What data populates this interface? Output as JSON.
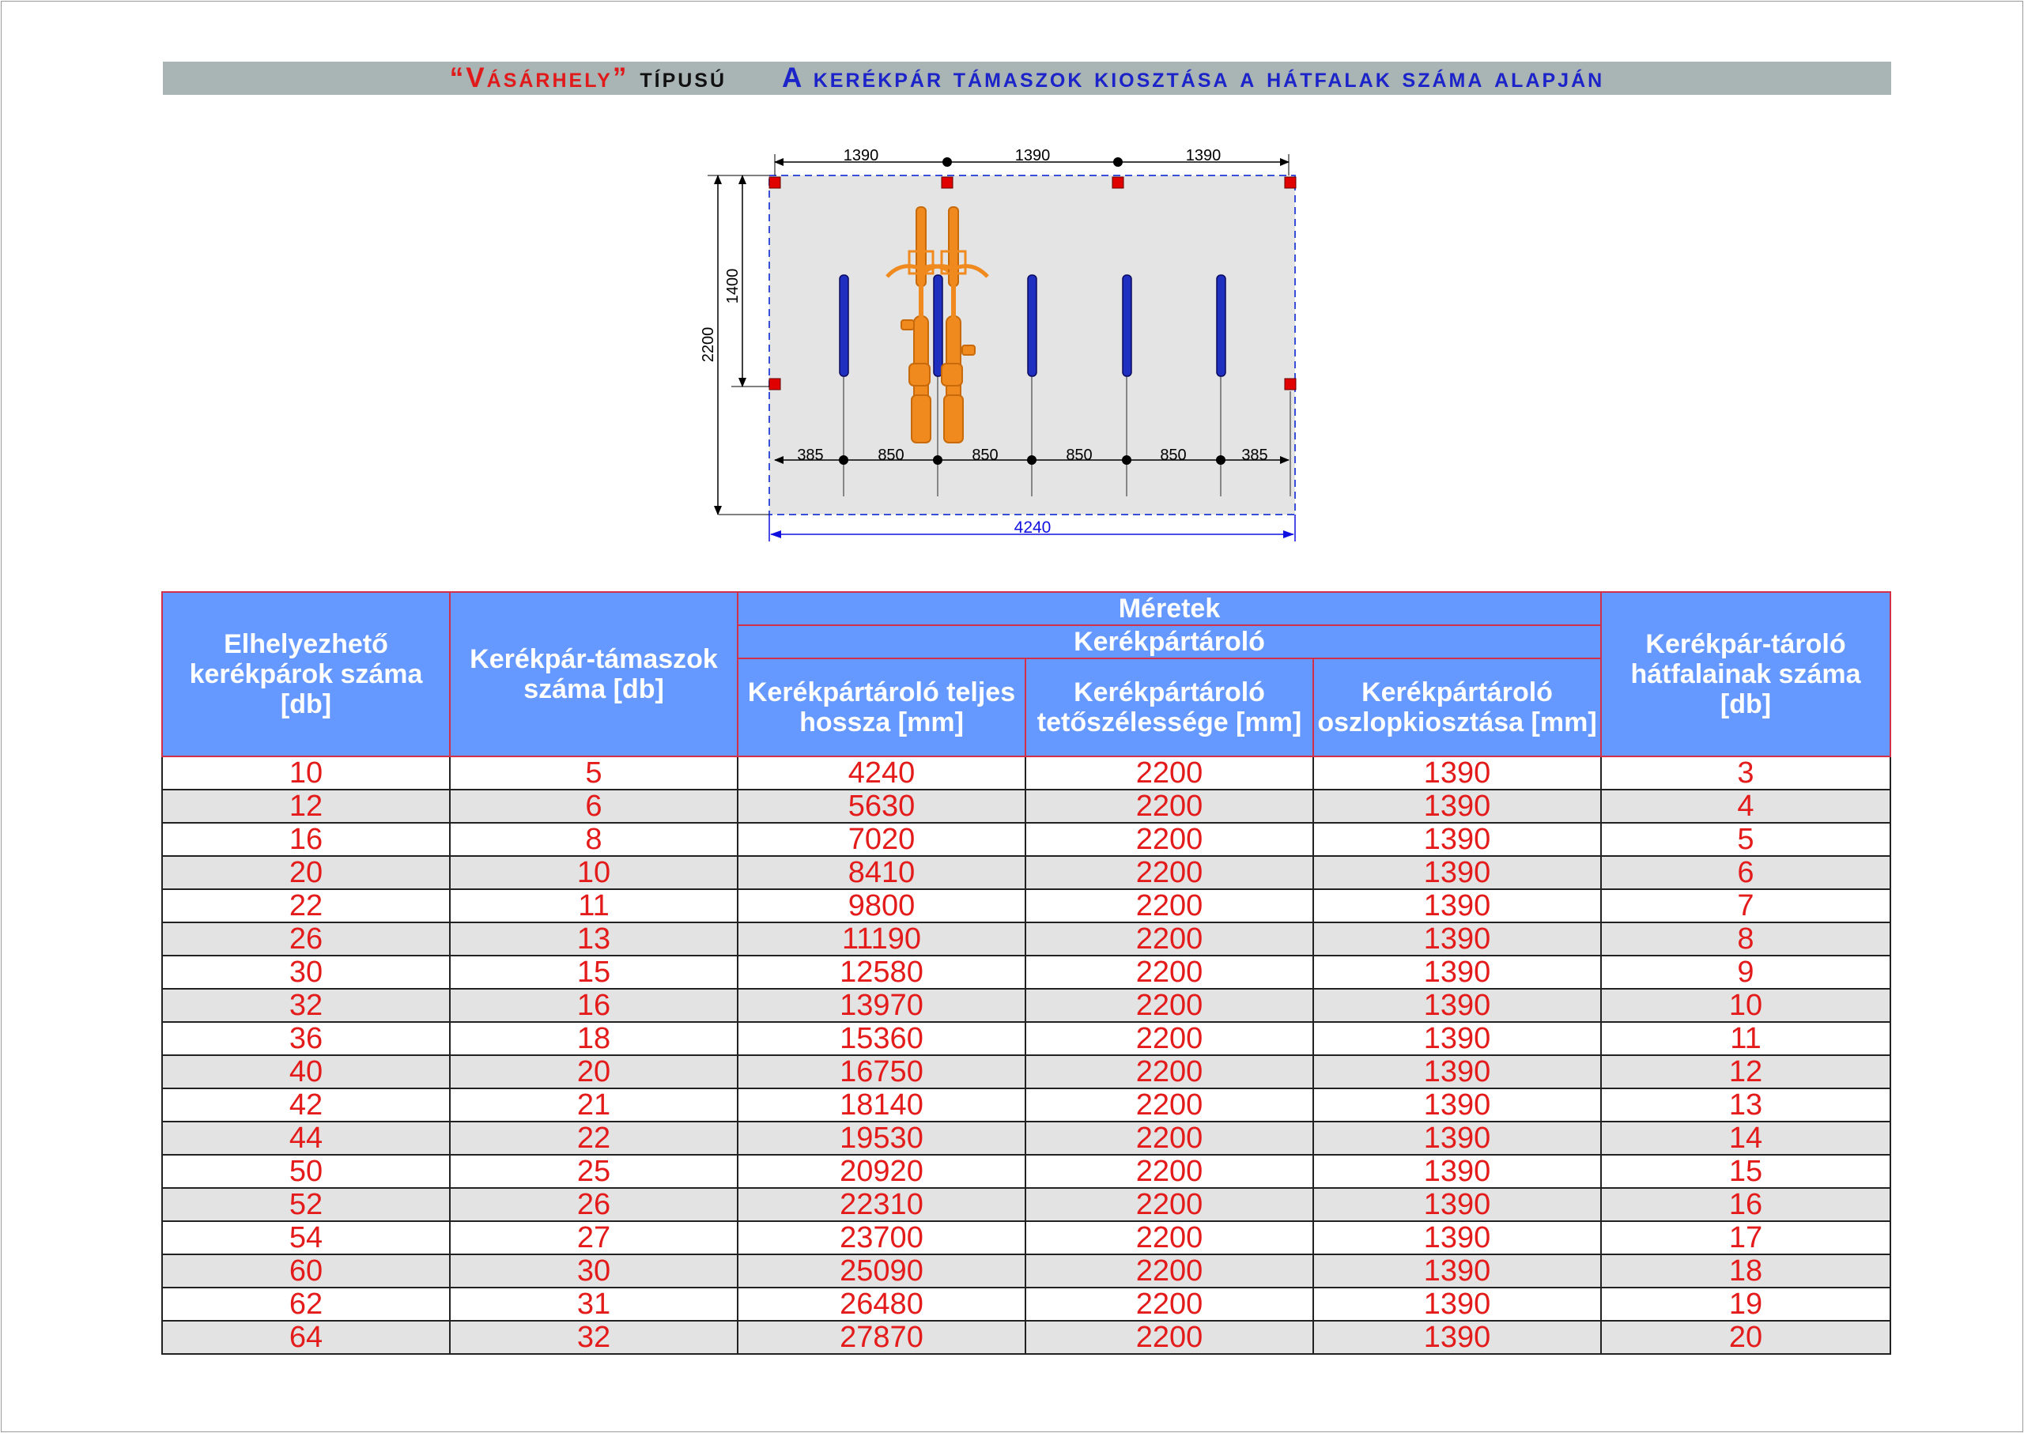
{
  "title": {
    "name": "“Vásárhely”",
    "type": "típusú",
    "description": "A kerékpár támaszok kiosztása a hátfalak száma alapján"
  },
  "diagram": {
    "top_dims": [
      "1390",
      "1390",
      "1390"
    ],
    "height_total": "2200",
    "height_back": "1400",
    "bottom_dims": [
      "385",
      "850",
      "850",
      "850",
      "850",
      "385"
    ],
    "total_length": "4240"
  },
  "table": {
    "headers": {
      "col1": "Elhelyezhető kerékpárok száma [db]",
      "col2": "Kerékpár-támaszok száma [db]",
      "group": "Méretek",
      "subgroup": "Kerékpártároló",
      "col3": "Kerékpártároló teljes hossza [mm]",
      "col4": "Kerékpártároló tetőszélessége [mm]",
      "col5": "Kerékpártároló oszlopkiosztása [mm]",
      "col6": "Kerékpár-tároló hátfalainak száma [db]"
    },
    "rows": [
      [
        "10",
        "5",
        "4240",
        "2200",
        "1390",
        "3"
      ],
      [
        "12",
        "6",
        "5630",
        "2200",
        "1390",
        "4"
      ],
      [
        "16",
        "8",
        "7020",
        "2200",
        "1390",
        "5"
      ],
      [
        "20",
        "10",
        "8410",
        "2200",
        "1390",
        "6"
      ],
      [
        "22",
        "11",
        "9800",
        "2200",
        "1390",
        "7"
      ],
      [
        "26",
        "13",
        "11190",
        "2200",
        "1390",
        "8"
      ],
      [
        "30",
        "15",
        "12580",
        "2200",
        "1390",
        "9"
      ],
      [
        "32",
        "16",
        "13970",
        "2200",
        "1390",
        "10"
      ],
      [
        "36",
        "18",
        "15360",
        "2200",
        "1390",
        "11"
      ],
      [
        "40",
        "20",
        "16750",
        "2200",
        "1390",
        "12"
      ],
      [
        "42",
        "21",
        "18140",
        "2200",
        "1390",
        "13"
      ],
      [
        "44",
        "22",
        "19530",
        "2200",
        "1390",
        "14"
      ],
      [
        "50",
        "25",
        "20920",
        "2200",
        "1390",
        "15"
      ],
      [
        "52",
        "26",
        "22310",
        "2200",
        "1390",
        "16"
      ],
      [
        "54",
        "27",
        "23700",
        "2200",
        "1390",
        "17"
      ],
      [
        "60",
        "30",
        "25090",
        "2200",
        "1390",
        "18"
      ],
      [
        "62",
        "31",
        "26480",
        "2200",
        "1390",
        "19"
      ],
      [
        "64",
        "32",
        "27870",
        "2200",
        "1390",
        "20"
      ]
    ]
  },
  "colors": {
    "header_bg": "#6699ff",
    "value_text": "#e41b1b",
    "title_name": "#e0191b",
    "title_desc": "#1b23c9",
    "rack": "#1f2fc0",
    "bike": "#f08a1e",
    "post": "#e00000"
  }
}
